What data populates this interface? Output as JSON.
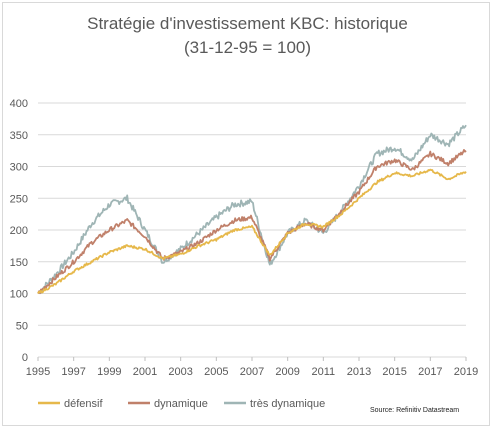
{
  "chart_data": {
    "type": "line",
    "title": "Stratégie d'investissement KBC: historique",
    "subtitle": "(31-12-95 = 100)",
    "xlabel": "",
    "ylabel": "",
    "ylim": [
      0,
      400
    ],
    "yticks": [
      "0",
      "50",
      "100",
      "150",
      "200",
      "250",
      "300",
      "350",
      "400"
    ],
    "xlim": [
      1995,
      2019
    ],
    "xticks": [
      "1995",
      "1997",
      "1999",
      "2001",
      "2003",
      "2005",
      "2007",
      "2009",
      "2011",
      "2013",
      "2015",
      "2017",
      "2019"
    ],
    "grid": true,
    "legend_position": "bottom",
    "source": "Source: Refinitiv Datastream",
    "series": [
      {
        "name": "défensif",
        "color": "#e6b84a",
        "points": [
          [
            1995,
            100
          ],
          [
            1996,
            115
          ],
          [
            1997,
            135
          ],
          [
            1998,
            150
          ],
          [
            1999,
            165
          ],
          [
            2000,
            175
          ],
          [
            2001,
            170
          ],
          [
            2002,
            155
          ],
          [
            2003,
            162
          ],
          [
            2004,
            175
          ],
          [
            2005,
            185
          ],
          [
            2006,
            200
          ],
          [
            2007,
            205
          ],
          [
            2008,
            160
          ],
          [
            2009,
            195
          ],
          [
            2010,
            210
          ],
          [
            2011,
            205
          ],
          [
            2012,
            225
          ],
          [
            2013,
            250
          ],
          [
            2014,
            275
          ],
          [
            2015,
            290
          ],
          [
            2016,
            285
          ],
          [
            2017,
            295
          ],
          [
            2018,
            280
          ],
          [
            2019,
            292
          ]
        ]
      },
      {
        "name": "dynamique",
        "color": "#c0806a",
        "points": [
          [
            1995,
            100
          ],
          [
            1996,
            125
          ],
          [
            1997,
            150
          ],
          [
            1998,
            180
          ],
          [
            1999,
            200
          ],
          [
            2000,
            215
          ],
          [
            2001,
            190
          ],
          [
            2002,
            155
          ],
          [
            2003,
            165
          ],
          [
            2004,
            180
          ],
          [
            2005,
            200
          ],
          [
            2006,
            215
          ],
          [
            2007,
            220
          ],
          [
            2008,
            155
          ],
          [
            2009,
            195
          ],
          [
            2010,
            210
          ],
          [
            2011,
            200
          ],
          [
            2012,
            230
          ],
          [
            2013,
            260
          ],
          [
            2014,
            300
          ],
          [
            2015,
            310
          ],
          [
            2016,
            295
          ],
          [
            2017,
            320
          ],
          [
            2018,
            305
          ],
          [
            2019,
            325
          ]
        ]
      },
      {
        "name": "très dynamique",
        "color": "#9fb5b5",
        "points": [
          [
            1995,
            100
          ],
          [
            1996,
            130
          ],
          [
            1997,
            165
          ],
          [
            1998,
            210
          ],
          [
            1999,
            240
          ],
          [
            2000,
            250
          ],
          [
            2001,
            200
          ],
          [
            2002,
            150
          ],
          [
            2003,
            170
          ],
          [
            2004,
            195
          ],
          [
            2005,
            220
          ],
          [
            2006,
            240
          ],
          [
            2007,
            245
          ],
          [
            2008,
            145
          ],
          [
            2009,
            195
          ],
          [
            2010,
            215
          ],
          [
            2011,
            195
          ],
          [
            2012,
            230
          ],
          [
            2013,
            270
          ],
          [
            2014,
            320
          ],
          [
            2015,
            330
          ],
          [
            2016,
            310
          ],
          [
            2017,
            350
          ],
          [
            2018,
            335
          ],
          [
            2019,
            365
          ]
        ]
      }
    ]
  }
}
